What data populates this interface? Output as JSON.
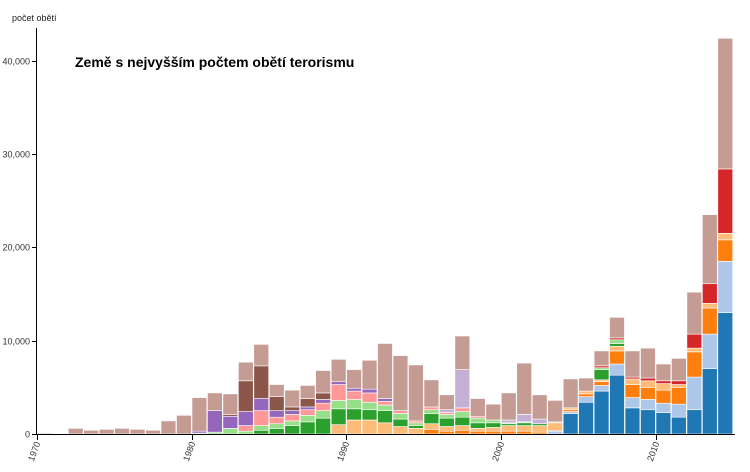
{
  "chart_data": {
    "type": "bar",
    "stacked": true,
    "title": "Země s nejvyšším počtem obětí terorismu",
    "ylabel": "počet obětí",
    "xlabel": "",
    "ylim": [
      0,
      43500
    ],
    "y_ticks": [
      0,
      10000,
      20000,
      30000,
      40000
    ],
    "y_tick_labels": [
      "0",
      "10,000",
      "20,000",
      "30,000",
      "40,000"
    ],
    "x_ticks": [
      1970,
      1980,
      1990,
      2000,
      2010
    ],
    "x_tick_labels": [
      "1970",
      "1980",
      "1990",
      "2000",
      "2010"
    ],
    "grid": false,
    "legend": "none",
    "years": [
      1970,
      1971,
      1972,
      1973,
      1974,
      1975,
      1976,
      1977,
      1978,
      1979,
      1980,
      1981,
      1982,
      1983,
      1984,
      1985,
      1986,
      1987,
      1988,
      1989,
      1990,
      1991,
      1992,
      1993,
      1994,
      1995,
      1996,
      1997,
      1998,
      1999,
      2000,
      2001,
      2002,
      2003,
      2004,
      2005,
      2006,
      2007,
      2008,
      2009,
      2010,
      2011,
      2012,
      2013,
      2014
    ],
    "series": [
      {
        "color": "#1f77b4",
        "values": [
          0,
          0,
          0,
          0,
          0,
          0,
          0,
          0,
          0,
          0,
          0,
          0,
          0,
          0,
          0,
          0,
          0,
          0,
          0,
          0,
          0,
          0,
          0,
          0,
          0,
          0,
          0,
          0,
          0,
          0,
          0,
          0,
          0,
          0,
          2200,
          3400,
          4600,
          6300,
          2800,
          2600,
          2300,
          1800,
          2600,
          7000,
          13000
        ]
      },
      {
        "color": "#aec7e8",
        "values": [
          0,
          0,
          0,
          0,
          0,
          0,
          0,
          0,
          0,
          0,
          0,
          0,
          0,
          0,
          0,
          0,
          0,
          0,
          0,
          0,
          0,
          0,
          0,
          0,
          0,
          0,
          0,
          0,
          0,
          0,
          0,
          0,
          0,
          300,
          200,
          600,
          600,
          1200,
          1100,
          1100,
          1000,
          1400,
          3500,
          3700,
          5500
        ]
      },
      {
        "color": "#ff7f0e",
        "values": [
          0,
          0,
          0,
          0,
          0,
          0,
          0,
          0,
          0,
          0,
          0,
          0,
          0,
          0,
          0,
          0,
          0,
          0,
          0,
          0,
          0,
          0,
          0,
          0,
          0,
          500,
          300,
          400,
          300,
          300,
          300,
          300,
          200,
          100,
          200,
          300,
          400,
          1400,
          1400,
          1300,
          1400,
          1800,
          2700,
          2800,
          2300
        ]
      },
      {
        "color": "#ffbb78",
        "values": [
          0,
          0,
          0,
          0,
          0,
          0,
          0,
          0,
          0,
          0,
          0,
          0,
          0,
          0,
          0,
          0,
          0,
          0,
          0,
          1000,
          1500,
          1500,
          1200,
          800,
          600,
          600,
          500,
          500,
          300,
          400,
          600,
          600,
          700,
          800,
          200,
          300,
          200,
          500,
          600,
          700,
          700,
          300,
          400,
          500,
          700
        ]
      },
      {
        "color": "#2ca02c",
        "values": [
          0,
          0,
          0,
          0,
          0,
          0,
          0,
          0,
          0,
          0,
          0,
          0,
          0,
          0,
          400,
          600,
          900,
          1300,
          1700,
          1700,
          1200,
          1100,
          1300,
          800,
          300,
          1100,
          900,
          900,
          600,
          500,
          200,
          300,
          200,
          0,
          0,
          0,
          1100,
          300,
          0,
          0,
          0,
          0,
          0,
          0,
          0
        ]
      },
      {
        "color": "#98df8a",
        "values": [
          0,
          0,
          0,
          0,
          0,
          0,
          0,
          0,
          0,
          0,
          100,
          200,
          600,
          300,
          500,
          500,
          500,
          700,
          800,
          900,
          1000,
          800,
          600,
          600,
          300,
          400,
          400,
          600,
          500,
          300,
          100,
          100,
          0,
          0,
          0,
          0,
          200,
          400,
          0,
          0,
          0,
          0,
          0,
          0,
          0
        ]
      },
      {
        "color": "#d62728",
        "values": [
          0,
          0,
          0,
          0,
          0,
          0,
          0,
          0,
          0,
          0,
          0,
          0,
          0,
          0,
          0,
          0,
          0,
          0,
          0,
          0,
          0,
          0,
          0,
          0,
          0,
          0,
          0,
          0,
          0,
          0,
          0,
          0,
          0,
          0,
          0,
          0,
          200,
          200,
          200,
          300,
          300,
          400,
          1500,
          2100,
          6900
        ]
      },
      {
        "color": "#ff9896",
        "values": [
          0,
          0,
          0,
          0,
          0,
          0,
          0,
          0,
          0,
          0,
          0,
          0,
          0,
          600,
          1600,
          700,
          700,
          600,
          800,
          1700,
          900,
          1000,
          400,
          300,
          200,
          300,
          200,
          400,
          200,
          0,
          0,
          0,
          0,
          0,
          0,
          0,
          0,
          0,
          0,
          0,
          0,
          0,
          0,
          0,
          0
        ]
      },
      {
        "color": "#9467bd",
        "values": [
          0,
          0,
          0,
          0,
          0,
          0,
          0,
          0,
          0,
          0,
          200,
          2300,
          1300,
          1500,
          1300,
          700,
          400,
          300,
          400,
          300,
          300,
          400,
          300,
          0,
          0,
          0,
          0,
          0,
          0,
          0,
          0,
          0,
          0,
          0,
          0,
          0,
          0,
          0,
          0,
          0,
          0,
          0,
          0,
          0,
          0
        ]
      },
      {
        "color": "#c5b0d5",
        "values": [
          0,
          0,
          0,
          0,
          0,
          0,
          0,
          0,
          0,
          0,
          0,
          0,
          0,
          0,
          0,
          0,
          0,
          0,
          0,
          0,
          0,
          0,
          0,
          0,
          0,
          0,
          300,
          4100,
          0,
          0,
          300,
          800,
          500,
          100,
          0,
          0,
          0,
          0,
          0,
          0,
          0,
          0,
          0,
          0,
          0
        ]
      },
      {
        "color": "#8c564b",
        "values": [
          0,
          0,
          0,
          0,
          0,
          0,
          0,
          0,
          0,
          0,
          0,
          0,
          200,
          3300,
          3500,
          1500,
          400,
          900,
          700,
          0,
          0,
          0,
          0,
          0,
          0,
          0,
          0,
          0,
          0,
          0,
          0,
          0,
          0,
          0,
          0,
          0,
          0,
          0,
          0,
          0,
          0,
          0,
          0,
          0,
          0
        ]
      },
      {
        "color": "#c49c94",
        "values": [
          100,
          0,
          600,
          400,
          500,
          600,
          500,
          400,
          1400,
          2000,
          3600,
          1900,
          2200,
          2000,
          2300,
          1300,
          1800,
          1400,
          2400,
          2400,
          2000,
          3100,
          5900,
          5900,
          6000,
          2900,
          1600,
          3600,
          1900,
          1700,
          2900,
          5500,
          2600,
          2300,
          3100,
          1400,
          1600,
          2200,
          2800,
          3200,
          1800,
          2400,
          4500,
          7400,
          14000
        ]
      }
    ]
  }
}
